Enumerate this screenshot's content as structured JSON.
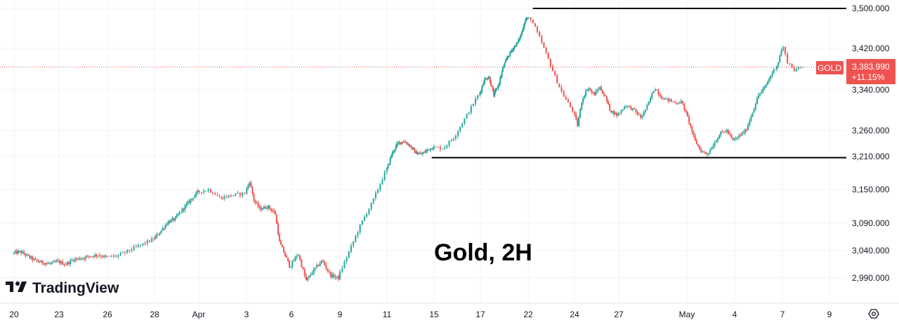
{
  "chart_data": {
    "type": "candlestick",
    "symbol": "GOLD",
    "annotation": "Gold, 2H",
    "branding": "TradingView",
    "last_price": "3,383.990",
    "change_pct": "+11.15%",
    "last_value": 3383.99,
    "colors": {
      "up": "#26a69a",
      "down": "#ef5350",
      "tag": "#ef5350",
      "lines": "#000000",
      "price_line": "#ef5350"
    },
    "y_ticks": [
      {
        "value": 3500,
        "label": "3,500.000"
      },
      {
        "value": 3420,
        "label": "3,420.000"
      },
      {
        "value": 3340,
        "label": "3,340.000"
      },
      {
        "value": 3260,
        "label": "3,260.000"
      },
      {
        "value": 3210,
        "label": "3,210.000"
      },
      {
        "value": 3150,
        "label": "3,150.000"
      },
      {
        "value": 3090,
        "label": "3,090.000"
      },
      {
        "value": 3040,
        "label": "3,040.000"
      },
      {
        "value": 2990,
        "label": "2,990.000"
      }
    ],
    "x_ticks": [
      {
        "t": 0,
        "label": "20"
      },
      {
        "t": 3,
        "label": "23"
      },
      {
        "t": 6,
        "label": "26"
      },
      {
        "t": 8,
        "label": "28"
      },
      {
        "t": 11,
        "label": "Apr"
      },
      {
        "t": 13,
        "label": "3"
      },
      {
        "t": 16,
        "label": "6"
      },
      {
        "t": 19,
        "label": "9"
      },
      {
        "t": 21,
        "label": "11"
      },
      {
        "t": 25,
        "label": "15"
      },
      {
        "t": 27,
        "label": "17"
      },
      {
        "t": 32,
        "label": "22"
      },
      {
        "t": 34,
        "label": "24"
      },
      {
        "t": 37,
        "label": "27"
      },
      {
        "t": 41,
        "label": "May"
      },
      {
        "t": 44,
        "label": "4"
      },
      {
        "t": 47,
        "label": "7"
      },
      {
        "t": 49,
        "label": "9"
      }
    ],
    "anchors": [
      [
        0,
        3035
      ],
      [
        0.5,
        3038
      ],
      [
        1,
        3030
      ],
      [
        1.5,
        3022
      ],
      [
        2,
        3018
      ],
      [
        2.5,
        3016
      ],
      [
        3,
        3020
      ],
      [
        3.5,
        3015
      ],
      [
        4,
        3024
      ],
      [
        4.5,
        3026
      ],
      [
        5,
        3030
      ],
      [
        5.5,
        3032
      ],
      [
        6,
        3028
      ],
      [
        6.5,
        3030
      ],
      [
        7,
        3040
      ],
      [
        7.5,
        3050
      ],
      [
        8,
        3060
      ],
      [
        8.5,
        3075
      ],
      [
        9,
        3092
      ],
      [
        9.5,
        3098
      ],
      [
        10,
        3115
      ],
      [
        10.5,
        3130
      ],
      [
        11,
        3145
      ],
      [
        11.5,
        3150
      ],
      [
        12,
        3135
      ],
      [
        12.5,
        3140
      ],
      [
        13,
        3143
      ],
      [
        13.3,
        3165
      ],
      [
        13.6,
        3130
      ],
      [
        14,
        3115
      ],
      [
        14.5,
        3120
      ],
      [
        15,
        3108
      ],
      [
        15.3,
        3055
      ],
      [
        15.7,
        3030
      ],
      [
        16,
        3010
      ],
      [
        16.5,
        3035
      ],
      [
        17,
        2985
      ],
      [
        17.5,
        3005
      ],
      [
        18,
        3022
      ],
      [
        18.5,
        2995
      ],
      [
        19,
        2990
      ],
      [
        19.5,
        3040
      ],
      [
        20,
        3090
      ],
      [
        20.5,
        3130
      ],
      [
        21,
        3180
      ],
      [
        21.5,
        3215
      ],
      [
        22,
        3235
      ],
      [
        22.5,
        3240
      ],
      [
        23,
        3232
      ],
      [
        23.5,
        3218
      ],
      [
        24,
        3214
      ],
      [
        24.5,
        3222
      ],
      [
        25,
        3228
      ],
      [
        25.5,
        3226
      ],
      [
        26,
        3250
      ],
      [
        26.5,
        3290
      ],
      [
        27,
        3330
      ],
      [
        27.5,
        3360
      ],
      [
        28,
        3365
      ],
      [
        28.5,
        3330
      ],
      [
        29,
        3350
      ],
      [
        29.5,
        3385
      ],
      [
        30,
        3405
      ],
      [
        30.5,
        3420
      ],
      [
        31,
        3432
      ],
      [
        31.4,
        3450
      ],
      [
        31.8,
        3478
      ],
      [
        32.2,
        3480
      ],
      [
        32.6,
        3440
      ],
      [
        33,
        3395
      ],
      [
        33.3,
        3360
      ],
      [
        33.6,
        3330
      ],
      [
        34,
        3300
      ],
      [
        34.3,
        3270
      ],
      [
        34.6,
        3320
      ],
      [
        35,
        3345
      ],
      [
        35.4,
        3330
      ],
      [
        35.8,
        3345
      ],
      [
        36.2,
        3325
      ],
      [
        36.5,
        3300
      ],
      [
        37,
        3290
      ],
      [
        37.5,
        3310
      ],
      [
        38,
        3300
      ],
      [
        38.4,
        3285
      ],
      [
        38.8,
        3310
      ],
      [
        39.2,
        3345
      ],
      [
        39.6,
        3325
      ],
      [
        40,
        3320
      ],
      [
        40.4,
        3315
      ],
      [
        40.8,
        3316
      ],
      [
        41.2,
        3280
      ],
      [
        41.6,
        3240
      ],
      [
        42,
        3220
      ],
      [
        42.4,
        3215
      ],
      [
        42.8,
        3235
      ],
      [
        43.2,
        3255
      ],
      [
        43.6,
        3260
      ],
      [
        44,
        3240
      ],
      [
        44.4,
        3250
      ],
      [
        44.8,
        3260
      ],
      [
        45.2,
        3295
      ],
      [
        45.6,
        3330
      ],
      [
        46,
        3345
      ],
      [
        46.4,
        3370
      ],
      [
        46.8,
        3390
      ],
      [
        47.1,
        3425
      ],
      [
        47.3,
        3395
      ],
      [
        47.6,
        3378
      ],
      [
        47.9,
        3384
      ]
    ],
    "y_range": [
      2990,
      3500
    ],
    "x_range": [
      0,
      50
    ],
    "levels": [
      {
        "value": 3500,
        "t_start": 32.2,
        "t_end": 50
      },
      {
        "value": 3208,
        "t_start": 24.8,
        "t_end": 50
      }
    ]
  }
}
